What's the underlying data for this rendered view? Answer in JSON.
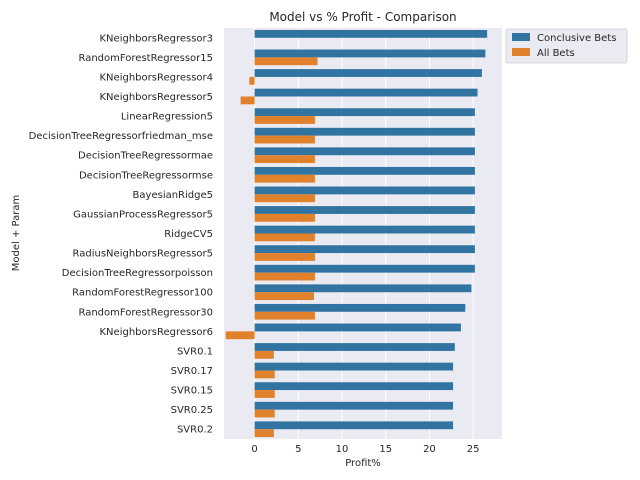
{
  "chart_data": {
    "type": "bar",
    "orientation": "horizontal",
    "title": "Model vs % Profit - Comparison",
    "xlabel": "Profit%",
    "ylabel": "Model + Param",
    "xlim": [
      -3.5,
      28.3
    ],
    "xticks": [
      0,
      5,
      10,
      15,
      20,
      25
    ],
    "grid": true,
    "legend_position": "outside top-right",
    "categories": [
      "KNeighborsRegressor3",
      "RandomForestRegressor15",
      "KNeighborsRegressor4",
      "KNeighborsRegressor5",
      "LinearRegression5",
      "DecisionTreeRegressorfriedman_mse",
      "DecisionTreeRegressormae",
      "DecisionTreeRegressormse",
      "BayesianRidge5",
      "GaussianProcessRegressor5",
      "RidgeCV5",
      "RadiusNeighborsRegressor5",
      "DecisionTreeRegressorpoisson",
      "RandomForestRegressor100",
      "RandomForestRegressor30",
      "KNeighborsRegressor6",
      "SVR0.1",
      "SVR0.17",
      "SVR0.15",
      "SVR0.25",
      "SVR0.2"
    ],
    "series": [
      {
        "name": "Conclusive Bets",
        "color": "#3274a1",
        "values": [
          26.6,
          26.4,
          26.0,
          25.5,
          25.2,
          25.2,
          25.2,
          25.2,
          25.2,
          25.2,
          25.2,
          25.2,
          25.2,
          24.8,
          24.1,
          23.6,
          22.9,
          22.7,
          22.7,
          22.7,
          22.7
        ]
      },
      {
        "name": "All Bets",
        "color": "#e1812c",
        "values": [
          0,
          7.2,
          -0.6,
          -1.6,
          6.9,
          6.9,
          6.9,
          6.9,
          6.9,
          6.9,
          6.9,
          6.9,
          6.9,
          6.8,
          6.9,
          -3.3,
          2.2,
          2.3,
          2.3,
          2.3,
          2.2
        ]
      }
    ]
  }
}
